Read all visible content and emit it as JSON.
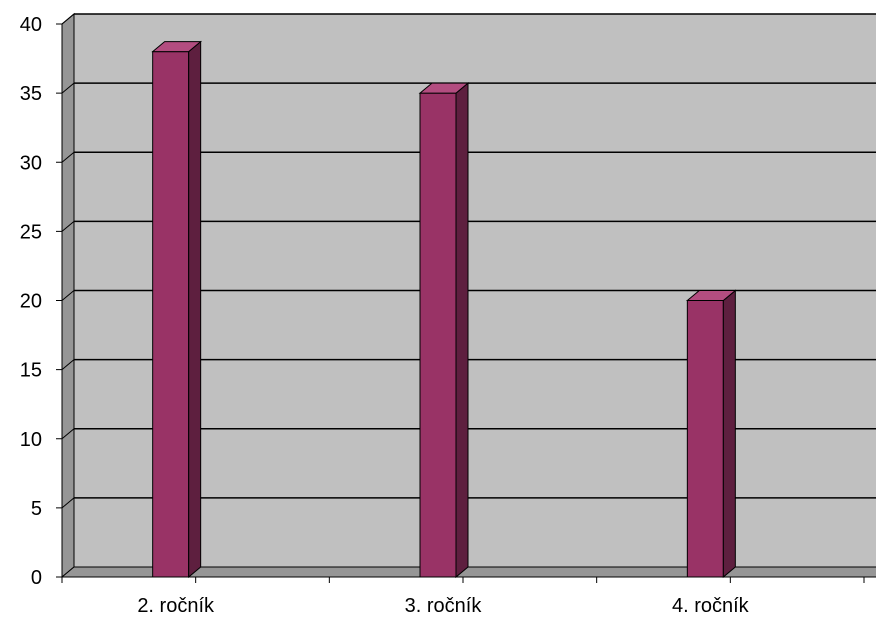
{
  "chart_data": {
    "type": "bar",
    "style": "3d-column",
    "categories": [
      "2. ročník",
      "3. ročník",
      "4. ročník"
    ],
    "values": [
      38,
      35,
      20
    ],
    "title": "",
    "xlabel": "",
    "ylabel": "",
    "ylim": [
      0,
      40
    ],
    "yticks": [
      "0",
      "5",
      "10",
      "15",
      "20",
      "25",
      "30",
      "35",
      "40"
    ],
    "grid": true,
    "legend": "none",
    "colors": {
      "bar_front": "#993366",
      "bar_side": "#5e1f3f",
      "bar_top": "#b34d80",
      "plot_wall": "#c0c0c0",
      "side_wall": "#969696",
      "floor": "#969696",
      "gridline": "#000000"
    }
  }
}
